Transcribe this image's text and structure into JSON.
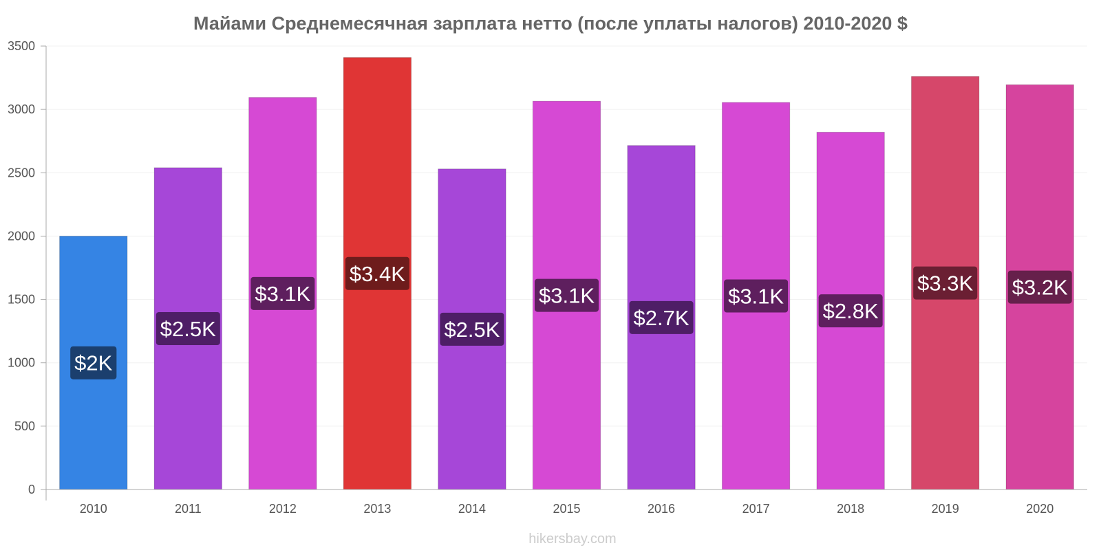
{
  "chart_data": {
    "type": "bar",
    "title": "Майами Среднемесячная зарплата нетто (после уплаты налогов) 2010-2020 $",
    "xlabel": "",
    "ylabel": "",
    "ylim": [
      0,
      3500
    ],
    "yticks": [
      0,
      500,
      1000,
      1500,
      2000,
      2500,
      3000,
      3500
    ],
    "grid": true,
    "categories": [
      "2010",
      "2011",
      "2012",
      "2013",
      "2014",
      "2015",
      "2016",
      "2017",
      "2018",
      "2019",
      "2020"
    ],
    "values": [
      2000,
      2540,
      3095,
      3410,
      2530,
      3065,
      2715,
      3055,
      2820,
      3260,
      3195
    ],
    "data_labels": [
      "$2K",
      "$2.5K",
      "$3.1K",
      "$3.4K",
      "$2.5K",
      "$3.1K",
      "$2.7K",
      "$3.1K",
      "$2.8K",
      "$3.3K",
      "$3.2K"
    ],
    "bar_colors": [
      "#3584e4",
      "#a647d8",
      "#d649d4",
      "#e03535",
      "#a647d8",
      "#d649d4",
      "#a647d8",
      "#d649d4",
      "#d649d4",
      "#d6476a",
      "#d6449e"
    ],
    "label_bg_colors": [
      "#1b3f6e",
      "#4e1e66",
      "#5e1f5e",
      "#6e1c1c",
      "#4e1e66",
      "#5e1f5e",
      "#4e1e66",
      "#5e1f5e",
      "#5e1f5e",
      "#6b1f33",
      "#66204b"
    ]
  },
  "credit": "hikersbay.com"
}
